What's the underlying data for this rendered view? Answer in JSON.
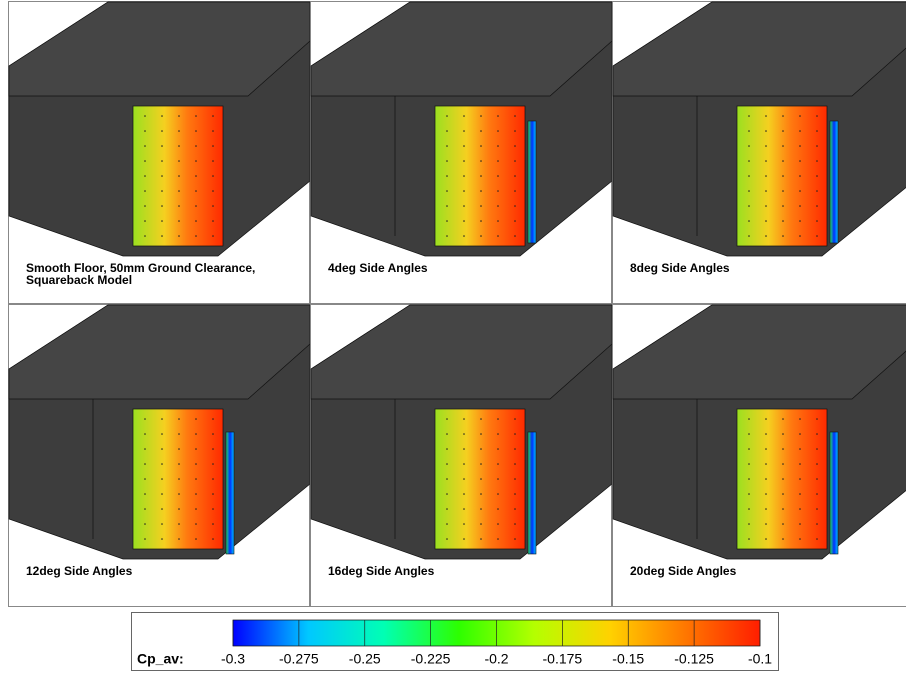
{
  "panels": [
    {
      "caption": [
        "Smooth Floor, 50mm Ground Clearance,",
        "Squareback Model"
      ]
    },
    {
      "caption": [
        "4deg Side Angles"
      ]
    },
    {
      "caption": [
        "8deg Side Angles"
      ]
    },
    {
      "caption": [
        "12deg Side Angles"
      ]
    },
    {
      "caption": [
        "16deg Side Angles"
      ]
    },
    {
      "caption": [
        "20deg Side Angles"
      ]
    }
  ],
  "colorbar": {
    "label": "Cp_av:",
    "lim": [
      -0.3,
      -0.1
    ],
    "ticks": [
      -0.3,
      -0.275,
      -0.25,
      -0.225,
      -0.2,
      -0.175,
      -0.15,
      -0.125,
      -0.1
    ],
    "colors": [
      "#0000ff",
      "#00c8ff",
      "#00ffb4",
      "#2dff00",
      "#b4ff00",
      "#ffd200",
      "#ff7800",
      "#ff1e00"
    ]
  }
}
